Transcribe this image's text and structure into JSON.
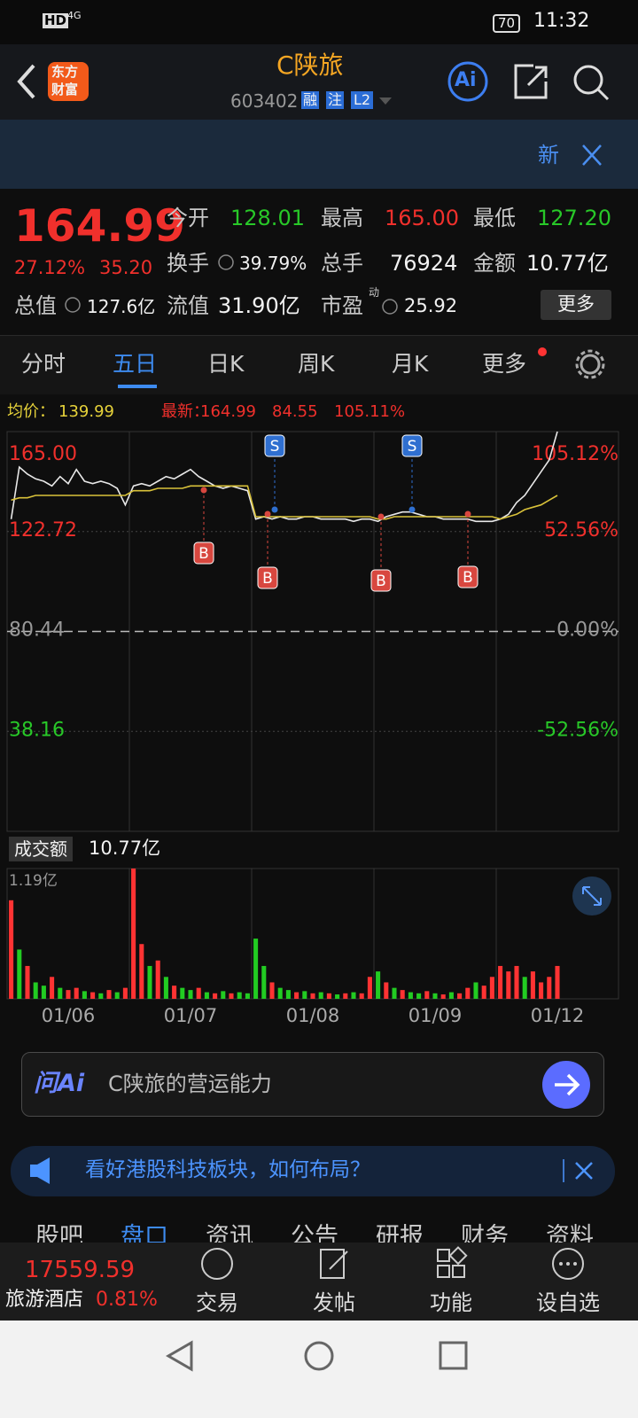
{
  "status_bar": {
    "network": "HD",
    "signal": "4G",
    "battery": "70",
    "time": "11:32"
  },
  "header": {
    "logo": [
      "东方",
      "财富"
    ],
    "title": "C陕旅",
    "code": "603402",
    "badges": [
      "融",
      "注",
      "L2"
    ],
    "ai": "Ai"
  },
  "banner": {
    "new": "新"
  },
  "quote": {
    "price": "164.99",
    "change_pct": "27.12%",
    "change": "35.20",
    "fields": [
      {
        "label": "今开",
        "value": "128.01"
      },
      {
        "label": "最高",
        "value": "165.00"
      },
      {
        "label": "最低",
        "value": "127.20"
      },
      {
        "label": "换手",
        "value": "39.79%"
      },
      {
        "label": "总手",
        "value": "76924"
      },
      {
        "label": "金额",
        "value": "10.77亿"
      },
      {
        "label": "总值",
        "value": "127.6亿"
      },
      {
        "label": "流值",
        "value": "31.90亿"
      },
      {
        "label": "市盈",
        "value": "25.92",
        "sup": "动"
      }
    ],
    "more": "更多"
  },
  "tabs": {
    "items": [
      "分时",
      "五日",
      "日K",
      "周K",
      "月K",
      "更多"
    ],
    "active": 1
  },
  "chart": {
    "type": "line",
    "avg_label": "均价：",
    "avg": "139.99",
    "latest_label": "最新：",
    "latest": "164.99",
    "change": "84.55",
    "change_pct": "105.11%",
    "ylim": [
      -4.12,
      165
    ],
    "yticks": [
      {
        "value": 165,
        "label": "165.00"
      },
      122.72,
      80.44,
      38.16
    ],
    "y2lim": [
      -105.12,
      105.12
    ],
    "y2ticks": [
      {
        "value": 105.12,
        "label": "105.12%"
      },
      {
        "value": 52.56,
        "label": "52.56%"
      },
      {
        "value": 0,
        "label": "0.00%"
      },
      {
        "value": -52.56,
        "label": "-52.56%"
      }
    ],
    "day_labels": [
      "01/06",
      "01/07",
      "01/08",
      "01/09",
      "01/12"
    ],
    "series": [
      {
        "color": "#e8e8e8",
        "values": [
          128,
          150,
          147,
          145,
          144,
          142,
          146,
          143,
          149,
          144,
          143,
          144,
          143,
          141,
          134,
          142,
          143,
          142,
          144,
          146,
          145,
          147,
          149,
          146,
          144,
          142,
          141,
          142,
          141,
          140,
          128,
          129,
          128,
          129,
          128,
          128,
          129,
          129,
          128,
          128,
          128,
          128,
          127,
          128,
          128,
          127,
          129,
          130,
          131,
          131,
          130,
          129,
          129,
          128,
          128,
          128,
          128,
          127,
          127,
          127,
          128,
          130,
          135,
          138,
          143,
          148,
          153,
          165,
          null,
          null,
          null,
          null,
          null,
          null,
          null
        ]
      },
      {
        "color": "#d9c23a",
        "values": [
          136,
          137,
          137,
          138,
          138,
          138,
          138,
          138,
          138,
          138,
          138,
          138,
          138,
          138,
          138,
          140,
          140,
          140,
          141,
          141,
          141,
          141,
          142,
          142,
          142,
          142,
          142,
          142,
          142,
          142,
          129,
          129,
          129,
          129,
          129,
          129,
          129,
          129,
          129,
          129,
          129,
          129,
          129,
          129,
          129,
          128,
          128,
          129,
          129,
          129,
          129,
          129,
          129,
          129,
          129,
          129,
          129,
          129,
          129,
          129,
          128,
          129,
          130,
          132,
          133,
          134,
          136,
          138,
          null,
          null,
          null,
          null,
          null,
          null,
          null
        ]
      }
    ],
    "markers": [
      "B",
      "B",
      "S",
      "B",
      "S",
      "B"
    ]
  },
  "volume": {
    "label": "成交额",
    "total": "10.77亿",
    "ylim": [
      0,
      1.19
    ],
    "yticks": [
      {
        "value": 1.19,
        "label": "1.19亿"
      }
    ],
    "values": [
      0.9,
      0.45,
      0.3,
      0.15,
      0.12,
      0.2,
      0.1,
      0.08,
      0.1,
      0.07,
      0.06,
      0.05,
      0.08,
      0.06,
      0.1,
      1.19,
      0.5,
      0.3,
      0.35,
      0.2,
      0.12,
      0.1,
      0.08,
      0.1,
      0.06,
      0.05,
      0.07,
      0.05,
      0.06,
      0.05,
      0.55,
      0.3,
      0.15,
      0.1,
      0.08,
      0.06,
      0.07,
      0.05,
      0.06,
      0.05,
      0.04,
      0.05,
      0.06,
      0.05,
      0.2,
      0.25,
      0.15,
      0.1,
      0.08,
      0.06,
      0.05,
      0.07,
      0.05,
      0.04,
      0.06,
      0.05,
      0.1,
      0.15,
      0.12,
      0.2,
      0.3,
      0.25,
      0.3,
      0.2,
      0.25,
      0.15,
      0.2,
      0.3,
      null,
      null,
      null,
      null,
      null,
      null,
      null
    ],
    "colors": [
      "#f33",
      "#2c2",
      "#f33",
      "#2c2",
      "#2c2",
      "#f33",
      "#2c2",
      "#f33",
      "#f33",
      "#2c2",
      "#f33",
      "#2c2",
      "#f33",
      "#2c2",
      "#f33",
      "#f33",
      "#f33",
      "#2c2",
      "#f33",
      "#2c2",
      "#f33",
      "#2c2",
      "#2c2",
      "#f33",
      "#2c2",
      "#f33",
      "#2c2",
      "#f33",
      "#2c2",
      "#2c2",
      "#2c2",
      "#2c2",
      "#f33",
      "#2c2",
      "#2c2",
      "#f33",
      "#2c2",
      "#f33",
      "#2c2",
      "#f33",
      "#2c2",
      "#f33",
      "#2c2",
      "#f33",
      "#f33",
      "#2c2",
      "#f33",
      "#2c2",
      "#f33",
      "#2c2",
      "#2c2",
      "#f33",
      "#2c2",
      "#f33",
      "#2c2",
      "#f33",
      "#f33",
      "#2c2",
      "#f33",
      "#f33",
      "#f33",
      "#f33",
      "#f33",
      "#2c2",
      "#f33",
      "#f33",
      "#f33",
      "#f33",
      null,
      null,
      null,
      null,
      null,
      null,
      null
    ]
  },
  "ai_box": {
    "brand": "问Ai",
    "prompt": "C陕旅的营运能力"
  },
  "news": "看好港股科技板块，如何布局？",
  "section_tabs": {
    "items": [
      "股吧",
      "盘口",
      "资讯",
      "公告",
      "研报",
      "财务",
      "资料"
    ],
    "active": 1
  },
  "footer": {
    "index_value": "17559.59",
    "sector": "旅游酒店",
    "sector_pct": "0.81%",
    "actions": [
      "交易",
      "发帖",
      "功能",
      "设自选"
    ]
  }
}
